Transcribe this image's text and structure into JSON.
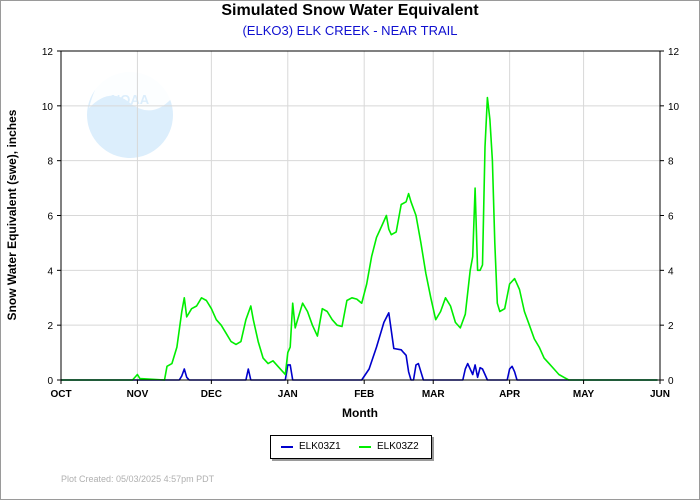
{
  "title": "Simulated Snow Water Equivalent",
  "subtitle": "(ELKO3) ELK CREEK - NEAR TRAIL",
  "footer": "Plot Created: 05/03/2025 4:57pm PDT",
  "logo_text": "NOAA",
  "colors": {
    "series1": "#0000cc",
    "series2": "#00ee00",
    "axis": "#000000",
    "grid": "#d8d8d8",
    "subtitle": "#1010d0"
  },
  "chart_data": {
    "type": "line",
    "xlabel": "Month",
    "ylabel": "Snow Water Equivalent (swe),  inches",
    "x_ticks": [
      "OCT",
      "NOV",
      "DEC",
      "JAN",
      "FEB",
      "MAR",
      "APR",
      "MAY",
      "JUN"
    ],
    "y_ticks": [
      "0",
      "2",
      "4",
      "6",
      "8",
      "10",
      "12"
    ],
    "ylim": [
      0,
      12
    ],
    "xlim": [
      "2024-10-01",
      "2025-06-01"
    ],
    "grid": true,
    "legend_position": "bottom-center",
    "series": [
      {
        "name": "ELK03Z1",
        "color": "#0000cc",
        "points": [
          [
            "2024-10-01",
            0
          ],
          [
            "2024-11-18",
            0
          ],
          [
            "2024-11-19",
            0.15
          ],
          [
            "2024-11-20",
            0.4
          ],
          [
            "2024-11-21",
            0.1
          ],
          [
            "2024-11-22",
            0
          ],
          [
            "2024-12-15",
            0
          ],
          [
            "2024-12-16",
            0.4
          ],
          [
            "2024-12-17",
            0
          ],
          [
            "2024-12-31",
            0
          ],
          [
            "2025-01-01",
            0.55
          ],
          [
            "2025-01-02",
            0.55
          ],
          [
            "2025-01-03",
            0
          ],
          [
            "2025-01-31",
            0
          ],
          [
            "2025-02-03",
            0.4
          ],
          [
            "2025-02-06",
            1.2
          ],
          [
            "2025-02-09",
            2.1
          ],
          [
            "2025-02-11",
            2.45
          ],
          [
            "2025-02-12",
            1.8
          ],
          [
            "2025-02-13",
            1.15
          ],
          [
            "2025-02-16",
            1.1
          ],
          [
            "2025-02-17",
            1.0
          ],
          [
            "2025-02-18",
            0.9
          ],
          [
            "2025-02-19",
            0.3
          ],
          [
            "2025-02-20",
            0
          ],
          [
            "2025-02-21",
            0
          ],
          [
            "2025-02-22",
            0.55
          ],
          [
            "2025-02-23",
            0.6
          ],
          [
            "2025-02-24",
            0.3
          ],
          [
            "2025-02-25",
            0
          ],
          [
            "2025-03-13",
            0
          ],
          [
            "2025-03-14",
            0.4
          ],
          [
            "2025-03-15",
            0.6
          ],
          [
            "2025-03-16",
            0.4
          ],
          [
            "2025-03-17",
            0.2
          ],
          [
            "2025-03-18",
            0.55
          ],
          [
            "2025-03-19",
            0.1
          ],
          [
            "2025-03-20",
            0.45
          ],
          [
            "2025-03-21",
            0.4
          ],
          [
            "2025-03-22",
            0.2
          ],
          [
            "2025-03-23",
            0
          ],
          [
            "2025-03-31",
            0
          ],
          [
            "2025-04-01",
            0.4
          ],
          [
            "2025-04-02",
            0.5
          ],
          [
            "2025-04-03",
            0.3
          ],
          [
            "2025-04-04",
            0
          ],
          [
            "2025-05-31",
            0
          ]
        ]
      },
      {
        "name": "ELK03Z2",
        "color": "#00ee00",
        "points": [
          [
            "2024-10-01",
            0
          ],
          [
            "2024-10-30",
            0
          ],
          [
            "2024-11-01",
            0.2
          ],
          [
            "2024-11-02",
            0.05
          ],
          [
            "2024-11-12",
            0
          ],
          [
            "2024-11-13",
            0.5
          ],
          [
            "2024-11-15",
            0.6
          ],
          [
            "2024-11-17",
            1.2
          ],
          [
            "2024-11-19",
            2.5
          ],
          [
            "2024-11-20",
            3.0
          ],
          [
            "2024-11-21",
            2.3
          ],
          [
            "2024-11-23",
            2.6
          ],
          [
            "2024-11-25",
            2.7
          ],
          [
            "2024-11-27",
            3.0
          ],
          [
            "2024-11-29",
            2.9
          ],
          [
            "2024-12-01",
            2.6
          ],
          [
            "2024-12-03",
            2.2
          ],
          [
            "2024-12-05",
            2.0
          ],
          [
            "2024-12-07",
            1.7
          ],
          [
            "2024-12-09",
            1.4
          ],
          [
            "2024-12-11",
            1.3
          ],
          [
            "2024-12-13",
            1.4
          ],
          [
            "2024-12-15",
            2.2
          ],
          [
            "2024-12-17",
            2.7
          ],
          [
            "2024-12-18",
            2.2
          ],
          [
            "2024-12-20",
            1.4
          ],
          [
            "2024-12-22",
            0.8
          ],
          [
            "2024-12-24",
            0.6
          ],
          [
            "2024-12-26",
            0.7
          ],
          [
            "2024-12-28",
            0.5
          ],
          [
            "2024-12-30",
            0.3
          ],
          [
            "2024-12-31",
            0.2
          ],
          [
            "2025-01-01",
            1.0
          ],
          [
            "2025-01-02",
            1.2
          ],
          [
            "2025-01-03",
            2.8
          ],
          [
            "2025-01-04",
            1.9
          ],
          [
            "2025-01-05",
            2.2
          ],
          [
            "2025-01-07",
            2.8
          ],
          [
            "2025-01-09",
            2.5
          ],
          [
            "2025-01-11",
            2.0
          ],
          [
            "2025-01-13",
            1.6
          ],
          [
            "2025-01-15",
            2.6
          ],
          [
            "2025-01-17",
            2.5
          ],
          [
            "2025-01-19",
            2.2
          ],
          [
            "2025-01-21",
            2.0
          ],
          [
            "2025-01-23",
            1.95
          ],
          [
            "2025-01-25",
            2.9
          ],
          [
            "2025-01-27",
            3.0
          ],
          [
            "2025-01-29",
            2.95
          ],
          [
            "2025-01-31",
            2.8
          ],
          [
            "2025-02-02",
            3.5
          ],
          [
            "2025-02-04",
            4.5
          ],
          [
            "2025-02-06",
            5.2
          ],
          [
            "2025-02-08",
            5.6
          ],
          [
            "2025-02-10",
            6.0
          ],
          [
            "2025-02-11",
            5.5
          ],
          [
            "2025-02-12",
            5.3
          ],
          [
            "2025-02-14",
            5.4
          ],
          [
            "2025-02-16",
            6.4
          ],
          [
            "2025-02-18",
            6.5
          ],
          [
            "2025-02-19",
            6.8
          ],
          [
            "2025-02-20",
            6.5
          ],
          [
            "2025-02-22",
            6.0
          ],
          [
            "2025-02-24",
            5.0
          ],
          [
            "2025-02-26",
            3.9
          ],
          [
            "2025-02-28",
            3.0
          ],
          [
            "2025-03-02",
            2.2
          ],
          [
            "2025-03-04",
            2.5
          ],
          [
            "2025-03-06",
            3.0
          ],
          [
            "2025-03-08",
            2.7
          ],
          [
            "2025-03-10",
            2.1
          ],
          [
            "2025-03-12",
            1.9
          ],
          [
            "2025-03-14",
            2.4
          ],
          [
            "2025-03-16",
            4.0
          ],
          [
            "2025-03-17",
            4.5
          ],
          [
            "2025-03-18",
            7.0
          ],
          [
            "2025-03-19",
            4.0
          ],
          [
            "2025-03-20",
            4.0
          ],
          [
            "2025-03-21",
            4.2
          ],
          [
            "2025-03-22",
            8.5
          ],
          [
            "2025-03-23",
            10.3
          ],
          [
            "2025-03-24",
            9.5
          ],
          [
            "2025-03-25",
            8.0
          ],
          [
            "2025-03-26",
            5.0
          ],
          [
            "2025-03-27",
            2.8
          ],
          [
            "2025-03-28",
            2.5
          ],
          [
            "2025-03-30",
            2.6
          ],
          [
            "2025-04-01",
            3.5
          ],
          [
            "2025-04-03",
            3.7
          ],
          [
            "2025-04-05",
            3.3
          ],
          [
            "2025-04-07",
            2.5
          ],
          [
            "2025-04-09",
            2.0
          ],
          [
            "2025-04-11",
            1.5
          ],
          [
            "2025-04-13",
            1.2
          ],
          [
            "2025-04-15",
            0.8
          ],
          [
            "2025-04-17",
            0.6
          ],
          [
            "2025-04-19",
            0.4
          ],
          [
            "2025-04-21",
            0.2
          ],
          [
            "2025-04-23",
            0.1
          ],
          [
            "2025-04-25",
            0
          ],
          [
            "2025-05-31",
            0
          ]
        ]
      }
    ]
  }
}
